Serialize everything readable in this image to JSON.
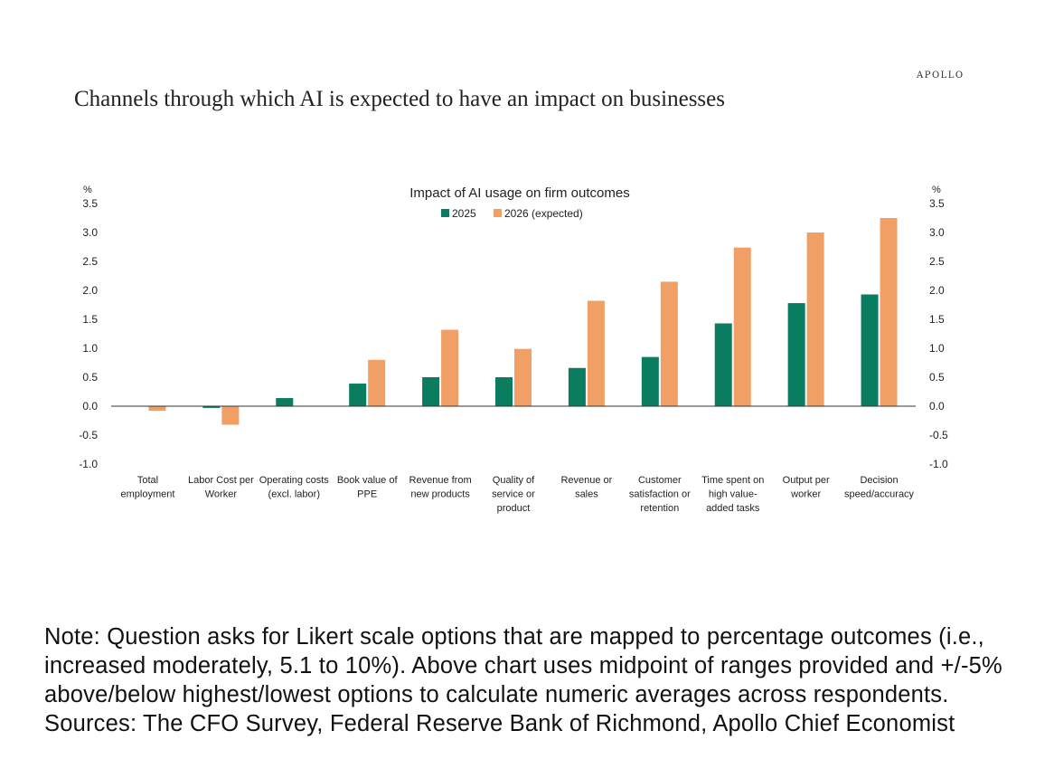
{
  "header": {
    "title": "Channels through which AI is expected to have an impact on businesses",
    "brand": "APOLLO"
  },
  "chart_data": {
    "type": "bar",
    "title": "Impact of AI usage on firm outcomes",
    "ylabel_left": "%",
    "ylabel_right": "%",
    "ylim": [
      -1.0,
      3.5
    ],
    "yticks": [
      "-1.0",
      "-0.5",
      "0.0",
      "0.5",
      "1.0",
      "1.5",
      "2.0",
      "2.5",
      "3.0",
      "3.5"
    ],
    "legend_position": "top-center",
    "grid": false,
    "colors": [
      "#0a7c5f",
      "#f0a064"
    ],
    "categories": [
      [
        "Total",
        "employment"
      ],
      [
        "Labor Cost per",
        "Worker"
      ],
      [
        "Operating costs",
        "(excl. labor)"
      ],
      [
        "Book value of",
        "PPE"
      ],
      [
        "Revenue from",
        "new products"
      ],
      [
        "Quality of",
        "service or",
        "product"
      ],
      [
        "Revenue or",
        "sales"
      ],
      [
        "Customer",
        "satisfaction or",
        "retention"
      ],
      [
        "Time spent on",
        "high value-",
        "added tasks"
      ],
      [
        "Output per",
        "worker"
      ],
      [
        "Decision",
        "speed/accuracy"
      ]
    ],
    "series": [
      {
        "name": "2025",
        "values": [
          0.0,
          -0.03,
          0.14,
          0.39,
          0.5,
          0.5,
          0.66,
          0.85,
          1.43,
          1.78,
          1.93
        ]
      },
      {
        "name": "2026 (expected)",
        "values": [
          -0.08,
          -0.32,
          0.0,
          0.8,
          1.32,
          0.99,
          1.82,
          2.15,
          2.74,
          3.0,
          3.25
        ]
      }
    ]
  },
  "footer": {
    "note": "Note: Question asks for Likert scale options that are mapped to percentage outcomes (i.e., increased moderately, 5.1 to 10%). Above chart uses midpoint of ranges provided and +/-5% above/below highest/lowest options to calculate numeric averages across respondents. Sources: The CFO Survey, Federal Reserve Bank of Richmond, Apollo Chief Economist"
  }
}
